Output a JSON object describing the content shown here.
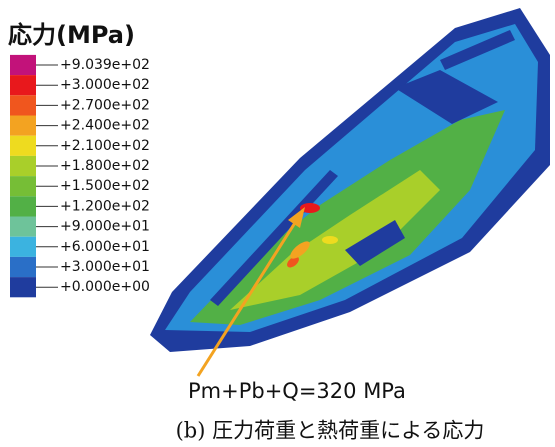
{
  "legend": {
    "title": "応力(MPa)",
    "labels": [
      "+9.039e+02",
      "+3.000e+02",
      "+2.700e+02",
      "+2.400e+02",
      "+2.100e+02",
      "+1.800e+02",
      "+1.500e+02",
      "+1.200e+02",
      "+9.000e+01",
      "+6.000e+01",
      "+3.000e+01",
      "+0.000e+00"
    ],
    "colors": [
      "#c2127a",
      "#e8181c",
      "#f0561e",
      "#f3a321",
      "#eedb1f",
      "#a9cf2a",
      "#76be36",
      "#52b046",
      "#6ec39a",
      "#3bb3e0",
      "#2a6fc7",
      "#1f3c9e"
    ]
  },
  "annotation": "Pm+Pb+Q=320 MPa",
  "caption": "(b) 圧力荷重と熱荷重による応力"
}
